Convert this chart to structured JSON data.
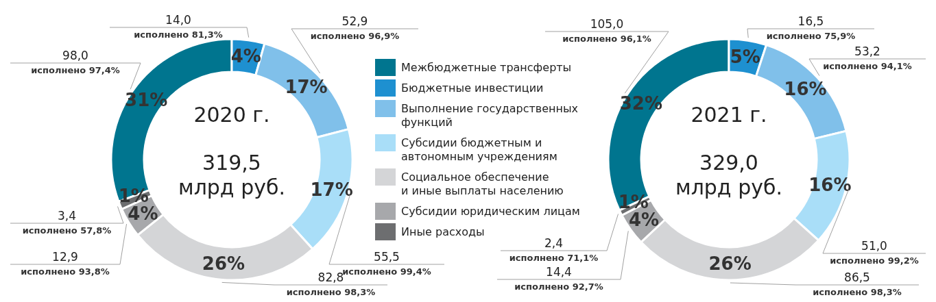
{
  "chart_data": [
    {
      "type": "donut",
      "title": "2020 г.",
      "subtitle": "319,5\nмлрд руб.",
      "legend": "right",
      "categories": [
        "Межбюджетные трансферты",
        "Бюджетные инвестиции",
        "Выполнение государственных\nфункций",
        "Субсидии бюджетным и\nавтономным учреждениям",
        "Социальное обеспечение\nи иные выплаты населению",
        "Субсидии юридическим лицам",
        "Иные расходы"
      ],
      "values": [
        98.0,
        14.0,
        52.9,
        55.5,
        82.8,
        12.9,
        3.4
      ],
      "colors": [
        "#00758f",
        "#1e90d0",
        "#80c0ea",
        "#a9def8",
        "#d4d5d7",
        "#a7a8ab",
        "#6d6e70"
      ],
      "value_labels": [
        "98,0\nисполнено 97,4%",
        "14,0\nисполнено 81,3%",
        "52,9\nисполнено 96,9%",
        "55,5\nисполнено 99,4%",
        "82,8\nисполнено 98,3%",
        "12,9\nисполнено 93,8%",
        "3,4\nисполнено 57,8%"
      ],
      "annotations": [
        "31%",
        "4%",
        "17%",
        "17%",
        "26%",
        "4%",
        "1%"
      ]
    },
    {
      "type": "donut",
      "title": "2021 г.",
      "subtitle": "329,0\nмлрд руб.",
      "legend": false,
      "categories": [
        null,
        null,
        null,
        null,
        null,
        null,
        null
      ],
      "values": [
        105.0,
        16.5,
        53.2,
        51.0,
        86.5,
        14.4,
        2.4
      ],
      "colors": [
        "#00758f",
        "#1e90d0",
        "#80c0ea",
        "#a9def8",
        "#d4d5d7",
        "#a7a8ab",
        "#6d6e70"
      ],
      "value_labels": [
        "105,0\nисполнено 96,1%",
        "16,5\nисполнено 75,9%",
        "53,2\nисполнено 94,1%",
        "51,0\nисполнено 99,2%",
        "86,5\nисполнено 98,3%",
        "14,4\nисполнено 92,7%",
        "2,4\nисполнено 71,1%"
      ],
      "annotations": [
        "32%",
        "5%",
        "16%",
        "16%",
        "26%",
        "4%",
        "1%"
      ]
    }
  ]
}
